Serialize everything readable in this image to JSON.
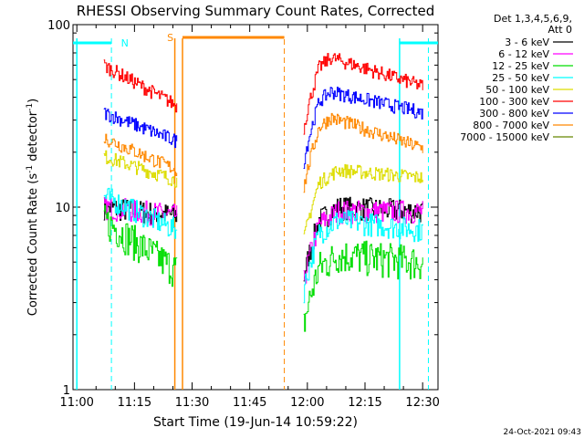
{
  "chart_data": {
    "type": "line",
    "title": "RHESSI Observing Summary Count Rates, Corrected",
    "xlabel": "Start Time (19-Jun-14 10:59:22)",
    "ylabel_main": "Corrected Count Rate (s",
    "ylabel_sup1": "-1",
    "ylabel_mid": " detector",
    "ylabel_sup2": "-1",
    "ylabel_end": ")",
    "yscale": "log",
    "ylim": [
      1,
      100
    ],
    "xlim_min": [
      -1,
      94
    ],
    "yticks": [
      {
        "value": 1,
        "label": "1"
      },
      {
        "value": 10,
        "label": "10"
      },
      {
        "value": 100,
        "label": "100"
      }
    ],
    "xticks": [
      {
        "value": 0,
        "label": "11:00"
      },
      {
        "value": 15,
        "label": "11:15"
      },
      {
        "value": 30,
        "label": "11:30"
      },
      {
        "value": 45,
        "label": "11:45"
      },
      {
        "value": 60,
        "label": "12:00"
      },
      {
        "value": 75,
        "label": "12:15"
      },
      {
        "value": 90,
        "label": "12:30"
      }
    ],
    "legend_header": [
      "Det 1,3,4,5,6,9,",
      "Att 0"
    ],
    "series": [
      {
        "name": "3 - 6 keV",
        "color": "#000000",
        "values": [
          [
            7,
            10
          ],
          [
            26,
            9
          ],
          [
            68,
            10
          ],
          [
            90,
            9.5
          ]
        ]
      },
      {
        "name": "6 - 12 keV",
        "color": "#ff00ff",
        "values": [
          [
            7,
            10
          ],
          [
            26,
            9
          ],
          [
            68,
            9.5
          ],
          [
            90,
            9.5
          ]
        ]
      },
      {
        "name": "12 - 25 keV",
        "color": "#00dd00",
        "values": [
          [
            7,
            8.5
          ],
          [
            26,
            4.5
          ],
          [
            68,
            5.5
          ],
          [
            90,
            5
          ]
        ]
      },
      {
        "name": "25 - 50 keV",
        "color": "#00ffff",
        "values": [
          [
            7,
            11.5
          ],
          [
            26,
            7.5
          ],
          [
            68,
            8.5
          ],
          [
            90,
            7.5
          ]
        ]
      },
      {
        "name": "50 - 100 keV",
        "color": "#dddd00",
        "values": [
          [
            7,
            19
          ],
          [
            26,
            14
          ],
          [
            68,
            16
          ],
          [
            90,
            14.5
          ]
        ]
      },
      {
        "name": "100 - 300 keV",
        "color": "#ff0000",
        "values": [
          [
            7,
            60
          ],
          [
            26,
            36
          ],
          [
            66,
            66
          ],
          [
            90,
            46
          ]
        ]
      },
      {
        "name": "300 - 800 keV",
        "color": "#0000ff",
        "values": [
          [
            7,
            33
          ],
          [
            26,
            23
          ],
          [
            66,
            43
          ],
          [
            90,
            33
          ]
        ]
      },
      {
        "name": "800 - 7000 keV",
        "color": "#ff8800",
        "values": [
          [
            7,
            24
          ],
          [
            26,
            16
          ],
          [
            66,
            31
          ],
          [
            90,
            21
          ]
        ]
      },
      {
        "name": "7000 - 15000 keV",
        "color": "#668800",
        "values": []
      }
    ],
    "annotations": [
      {
        "label": "N",
        "x": 14,
        "color": "#00ffff"
      },
      {
        "label": "S",
        "x": 32,
        "color": "#ff8800"
      }
    ]
  },
  "footer": {
    "timestamp": "24-Oct-2021 09:43"
  }
}
